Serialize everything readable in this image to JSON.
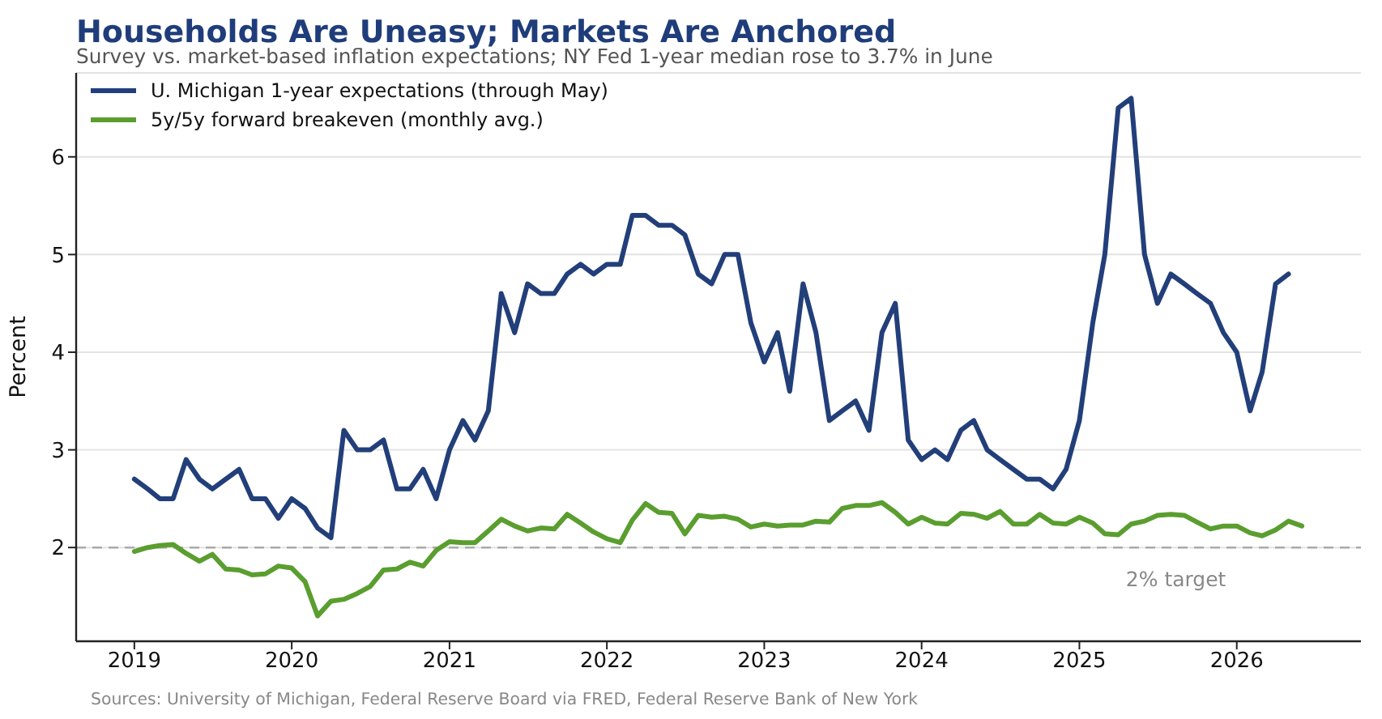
{
  "chart_data": {
    "type": "line",
    "title": "Households Are Uneasy; Markets Are Anchored",
    "subtitle": "Survey vs. market-based inflation expectations; NY Fed 1-year median rose to 3.7% in June",
    "ylabel": "Percent",
    "annotations": [
      "Sources: University of Michigan, Federal Reserve Board via FRED, Federal Reserve Bank of New York"
    ],
    "x": [
      "2019-01",
      "2019-02",
      "2019-03",
      "2019-04",
      "2019-05",
      "2019-06",
      "2019-07",
      "2019-08",
      "2019-09",
      "2019-10",
      "2019-11",
      "2019-12",
      "2020-01",
      "2020-02",
      "2020-03",
      "2020-04",
      "2020-05",
      "2020-06",
      "2020-07",
      "2020-08",
      "2020-09",
      "2020-10",
      "2020-11",
      "2020-12",
      "2021-01",
      "2021-02",
      "2021-03",
      "2021-04",
      "2021-05",
      "2021-06",
      "2021-07",
      "2021-08",
      "2021-09",
      "2021-10",
      "2021-11",
      "2021-12",
      "2022-01",
      "2022-02",
      "2022-03",
      "2022-04",
      "2022-05",
      "2022-06",
      "2022-07",
      "2022-08",
      "2022-09",
      "2022-10",
      "2022-11",
      "2022-12",
      "2023-01",
      "2023-02",
      "2023-03",
      "2023-04",
      "2023-05",
      "2023-06",
      "2023-07",
      "2023-08",
      "2023-09",
      "2023-10",
      "2023-11",
      "2023-12",
      "2024-01",
      "2024-02",
      "2024-03",
      "2024-04",
      "2024-05",
      "2024-06",
      "2024-07",
      "2024-08",
      "2024-09",
      "2024-10",
      "2024-11",
      "2024-12",
      "2025-01",
      "2025-02",
      "2025-03",
      "2025-04",
      "2025-05",
      "2025-06",
      "2025-07",
      "2025-08",
      "2025-09",
      "2025-10",
      "2025-11",
      "2025-12",
      "2026-01",
      "2026-02",
      "2026-03",
      "2026-04",
      "2026-05",
      "2026-06"
    ],
    "series": [
      {
        "name": "U. Michigan 1-year expectations (through May)",
        "color": "#223f7a",
        "values": [
          2.7,
          2.6,
          2.5,
          2.5,
          2.9,
          2.7,
          2.6,
          2.7,
          2.8,
          2.5,
          2.5,
          2.3,
          2.5,
          2.4,
          2.2,
          2.1,
          3.2,
          3.0,
          3.0,
          3.1,
          2.6,
          2.6,
          2.8,
          2.5,
          3.0,
          3.3,
          3.1,
          3.4,
          4.6,
          4.2,
          4.7,
          4.6,
          4.6,
          4.8,
          4.9,
          4.8,
          4.9,
          4.9,
          5.4,
          5.4,
          5.3,
          5.3,
          5.2,
          4.8,
          4.7,
          5.0,
          5.0,
          4.3,
          3.9,
          4.2,
          3.6,
          4.7,
          4.2,
          3.3,
          3.4,
          3.5,
          3.2,
          4.2,
          4.5,
          3.1,
          2.9,
          3.0,
          2.9,
          3.2,
          3.3,
          3.0,
          2.9,
          2.8,
          2.7,
          2.7,
          2.6,
          2.8,
          3.3,
          4.3,
          5.0,
          6.5,
          6.6,
          5.0,
          4.5,
          4.8,
          4.7,
          4.6,
          4.5,
          4.2,
          4.0,
          3.4,
          3.8,
          4.7,
          4.8,
          null
        ]
      },
      {
        "name": "5y/5y forward breakeven (monthly avg.)",
        "color": "#5a9e2f",
        "values": [
          1.96,
          2.0,
          2.02,
          2.03,
          1.94,
          1.86,
          1.93,
          1.78,
          1.77,
          1.72,
          1.73,
          1.81,
          1.79,
          1.65,
          1.3,
          1.45,
          1.47,
          1.53,
          1.6,
          1.77,
          1.78,
          1.85,
          1.81,
          1.97,
          2.06,
          2.05,
          2.05,
          2.17,
          2.29,
          2.22,
          2.17,
          2.2,
          2.19,
          2.34,
          2.25,
          2.16,
          2.09,
          2.05,
          2.28,
          2.45,
          2.36,
          2.35,
          2.14,
          2.33,
          2.31,
          2.32,
          2.29,
          2.21,
          2.24,
          2.22,
          2.23,
          2.23,
          2.27,
          2.26,
          2.4,
          2.43,
          2.43,
          2.46,
          2.36,
          2.24,
          2.31,
          2.25,
          2.24,
          2.35,
          2.34,
          2.3,
          2.37,
          2.24,
          2.24,
          2.34,
          2.25,
          2.24,
          2.31,
          2.25,
          2.14,
          2.13,
          2.24,
          2.27,
          2.33,
          2.34,
          2.33,
          2.26,
          2.19,
          2.22,
          2.22,
          2.15,
          2.12,
          2.18,
          2.27,
          2.22
        ]
      }
    ],
    "xlim": [
      "2018-08-19",
      "2026-10-16"
    ],
    "xticks": [
      "2019",
      "2020",
      "2021",
      "2022",
      "2023",
      "2024",
      "2025",
      "2026"
    ],
    "ylim": [
      1.04,
      6.86
    ],
    "yticks": [
      2,
      3,
      4,
      5,
      6
    ],
    "ref_lines": [
      {
        "axis": "y",
        "value": 2,
        "label": "2% target",
        "color": "#aaaaaa",
        "line_style": "dashed"
      }
    ],
    "grid": "y",
    "legend": "top left",
    "marker": "none",
    "line_style": "solid"
  }
}
